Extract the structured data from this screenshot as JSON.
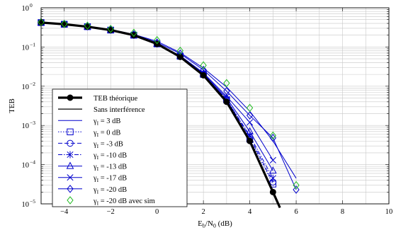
{
  "chart_data": {
    "type": "line",
    "xlabel_main": "E",
    "xlabel_sub1": "b",
    "xlabel_mid": "/N",
    "xlabel_sub2": "0",
    "xlabel_tail": " (dB)",
    "ylabel": "TEB",
    "xlim": [
      -5,
      10
    ],
    "ylim": [
      1e-05,
      1
    ],
    "yscale": "log",
    "grid": true,
    "legend_position": "bottom-left",
    "x_ticks": [
      -4,
      -2,
      0,
      2,
      4,
      6,
      8,
      10
    ],
    "x_tick_labels": [
      "−4",
      "−2",
      "0",
      "2",
      "4",
      "6",
      "8",
      "10"
    ],
    "y_ticks": [
      1e-05,
      0.0001,
      0.001,
      0.01,
      0.1,
      1
    ],
    "y_tick_base": "10",
    "y_tick_exponents": [
      "−5",
      "−4",
      "−3",
      "−2",
      "−1",
      "0"
    ],
    "series": [
      {
        "name": "TEB théorique",
        "color": "#000000",
        "marker": "circle",
        "filled": true,
        "width": 3.2,
        "dash": "",
        "x": [
          -5,
          -4,
          -3,
          -2,
          -1,
          0,
          1,
          2,
          3,
          4,
          5,
          5.3
        ],
        "y": [
          0.42,
          0.38,
          0.33,
          0.27,
          0.2,
          0.12,
          0.056,
          0.019,
          0.004,
          0.0004,
          2e-05,
          8e-06
        ]
      },
      {
        "name": "Sans interférence",
        "color": "#000000",
        "marker": "none",
        "filled": false,
        "width": 1.2,
        "dash": "",
        "x": [
          -5,
          -4,
          -3,
          -2,
          -1,
          0,
          1,
          2,
          3,
          4,
          5,
          5.3
        ],
        "y": [
          0.42,
          0.38,
          0.33,
          0.27,
          0.2,
          0.12,
          0.056,
          0.019,
          0.004,
          0.0004,
          2e-05,
          8e-06
        ]
      },
      {
        "name": "γI = 3 dB",
        "sub_label": "3 dB",
        "color": "#0000cc",
        "marker": "none",
        "filled": false,
        "width": 1,
        "dash": "",
        "x": [
          -5,
          -4,
          -3,
          -2,
          -1,
          0,
          1,
          2,
          3,
          4,
          5,
          6
        ],
        "y": [
          0.43,
          0.39,
          0.34,
          0.28,
          0.21,
          0.14,
          0.072,
          0.029,
          0.0095,
          0.0023,
          0.0004,
          4.5e-05
        ]
      },
      {
        "name": "γI = 0 dB",
        "sub_label": "0 dB",
        "color": "#0000cc",
        "marker": "square",
        "filled": false,
        "width": 1,
        "dash": "1.5,2",
        "x": [
          -5,
          -4,
          -3,
          -2,
          -1,
          0,
          1,
          2,
          3,
          4,
          5
        ],
        "y": [
          0.42,
          0.38,
          0.33,
          0.27,
          0.2,
          0.12,
          0.058,
          0.02,
          0.0045,
          0.00045,
          3.2e-05
        ]
      },
      {
        "name": "γI = -3 dB",
        "sub_label": "-3 dB",
        "color": "#0000cc",
        "marker": "circle",
        "filled": false,
        "width": 1,
        "dash": "6,3",
        "x": [
          -5,
          -4,
          -3,
          -2,
          -1,
          0,
          1,
          2,
          3,
          4,
          5
        ],
        "y": [
          0.42,
          0.38,
          0.33,
          0.27,
          0.2,
          0.12,
          0.058,
          0.02,
          0.0046,
          0.0005,
          3.6e-05
        ]
      },
      {
        "name": "γI = -10 dB",
        "sub_label": "-10 dB",
        "color": "#0000cc",
        "marker": "star",
        "filled": false,
        "width": 1,
        "dash": "6,2,1.5,2",
        "x": [
          -5,
          -4,
          -3,
          -2,
          -1,
          0,
          1,
          2,
          3,
          4,
          5
        ],
        "y": [
          0.42,
          0.38,
          0.33,
          0.27,
          0.2,
          0.12,
          0.058,
          0.02,
          0.0046,
          0.00055,
          4.5e-05
        ]
      },
      {
        "name": "γI = -13 dB",
        "sub_label": "-13 dB",
        "color": "#0000cc",
        "marker": "triangle",
        "filled": false,
        "width": 1,
        "dash": "",
        "x": [
          -5,
          -4,
          -3,
          -2,
          -1,
          0,
          1,
          2,
          3,
          4,
          5
        ],
        "y": [
          0.42,
          0.38,
          0.33,
          0.27,
          0.2,
          0.12,
          0.059,
          0.021,
          0.005,
          0.0007,
          7e-05
        ]
      },
      {
        "name": "γI = -17 dB",
        "sub_label": "-17 dB",
        "color": "#0000cc",
        "marker": "x",
        "filled": false,
        "width": 1,
        "dash": "",
        "x": [
          -5,
          -4,
          -3,
          -2,
          -1,
          0,
          1,
          2,
          3,
          4,
          5
        ],
        "y": [
          0.42,
          0.38,
          0.33,
          0.27,
          0.2,
          0.12,
          0.06,
          0.022,
          0.0055,
          0.0012,
          0.00013
        ]
      },
      {
        "name": "γI = -20 dB",
        "sub_label": "-20 dB",
        "color": "#0000cc",
        "marker": "diamond",
        "filled": false,
        "width": 1,
        "dash": "",
        "x": [
          -5,
          -4,
          -3,
          -2,
          -1,
          0,
          1,
          2,
          3,
          4,
          5,
          6
        ],
        "y": [
          0.43,
          0.39,
          0.34,
          0.28,
          0.21,
          0.13,
          0.068,
          0.026,
          0.0075,
          0.0018,
          0.00048,
          2.3e-05
        ]
      },
      {
        "name": "γI = -20 dB avec sim",
        "sub_label": "-20 dB avec sim",
        "color": "#22bb22",
        "marker": "diamond",
        "filled": false,
        "width": 1,
        "dash": "none",
        "x": [
          -5,
          -4,
          -3,
          -2,
          -1,
          0,
          1,
          2,
          3,
          4,
          5,
          6
        ],
        "y": [
          0.43,
          0.39,
          0.35,
          0.29,
          0.23,
          0.15,
          0.08,
          0.034,
          0.012,
          0.0028,
          0.00055,
          3e-05
        ]
      }
    ],
    "legend_prefix": "γ",
    "legend_prefix_sub": "I",
    "legend_eq": " = "
  }
}
